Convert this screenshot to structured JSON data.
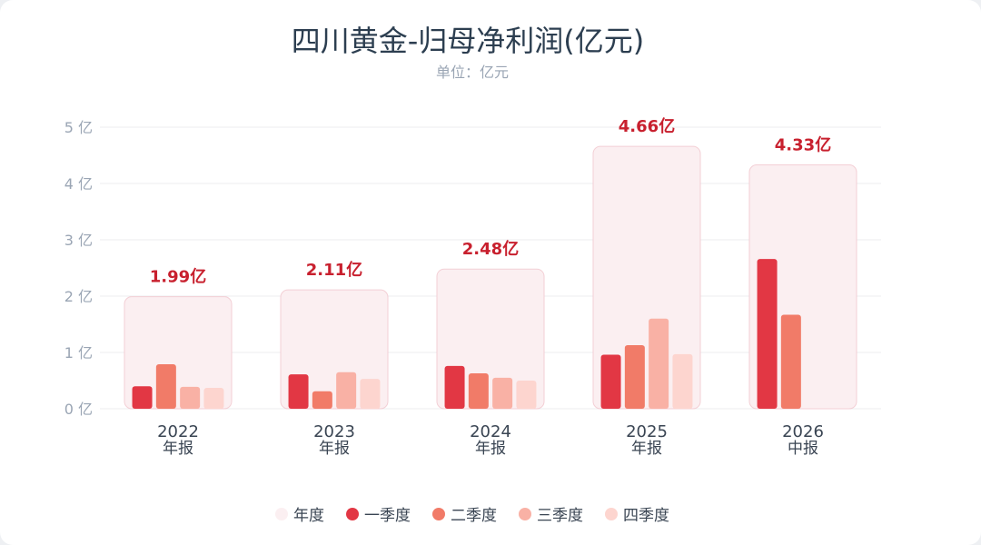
{
  "chart_data": {
    "type": "bar",
    "title": "四川黄金-归母净利润(亿元)",
    "subtitle": "单位：亿元",
    "y_unit": "亿",
    "ylim": [
      0,
      5
    ],
    "yticks": [
      0,
      1,
      2,
      3,
      4,
      5
    ],
    "grid": true,
    "legend_position": "bottom",
    "categories": [
      {
        "year": "2022",
        "period": "年报"
      },
      {
        "year": "2023",
        "period": "年报"
      },
      {
        "year": "2024",
        "period": "年报"
      },
      {
        "year": "2025",
        "period": "年报"
      },
      {
        "year": "2026",
        "period": "中报"
      }
    ],
    "annual_series": {
      "name": "年度",
      "values": [
        1.99,
        2.11,
        2.48,
        4.66,
        4.33
      ],
      "labels": [
        "1.99亿",
        "2.11亿",
        "2.48亿",
        "4.66亿",
        "4.33亿"
      ],
      "color": "#fbeff1"
    },
    "series": [
      {
        "name": "一季度",
        "color": "#e23744",
        "values": [
          0.4,
          0.61,
          0.76,
          0.96,
          2.66
        ]
      },
      {
        "name": "二季度",
        "color": "#f17b68",
        "values": [
          0.79,
          0.31,
          0.63,
          1.13,
          1.67
        ]
      },
      {
        "name": "三季度",
        "color": "#f9b1a5",
        "values": [
          0.39,
          0.65,
          0.55,
          1.6,
          null
        ]
      },
      {
        "name": "四季度",
        "color": "#fdd5cf",
        "values": [
          0.37,
          0.53,
          0.5,
          0.97,
          null
        ]
      }
    ],
    "colors": {
      "annual_label": "#c8202e",
      "axis_text": "#9aa5b4",
      "category_text": "#3a4553",
      "grid": "#ececef",
      "annual_border": "#f3cfd5"
    }
  }
}
